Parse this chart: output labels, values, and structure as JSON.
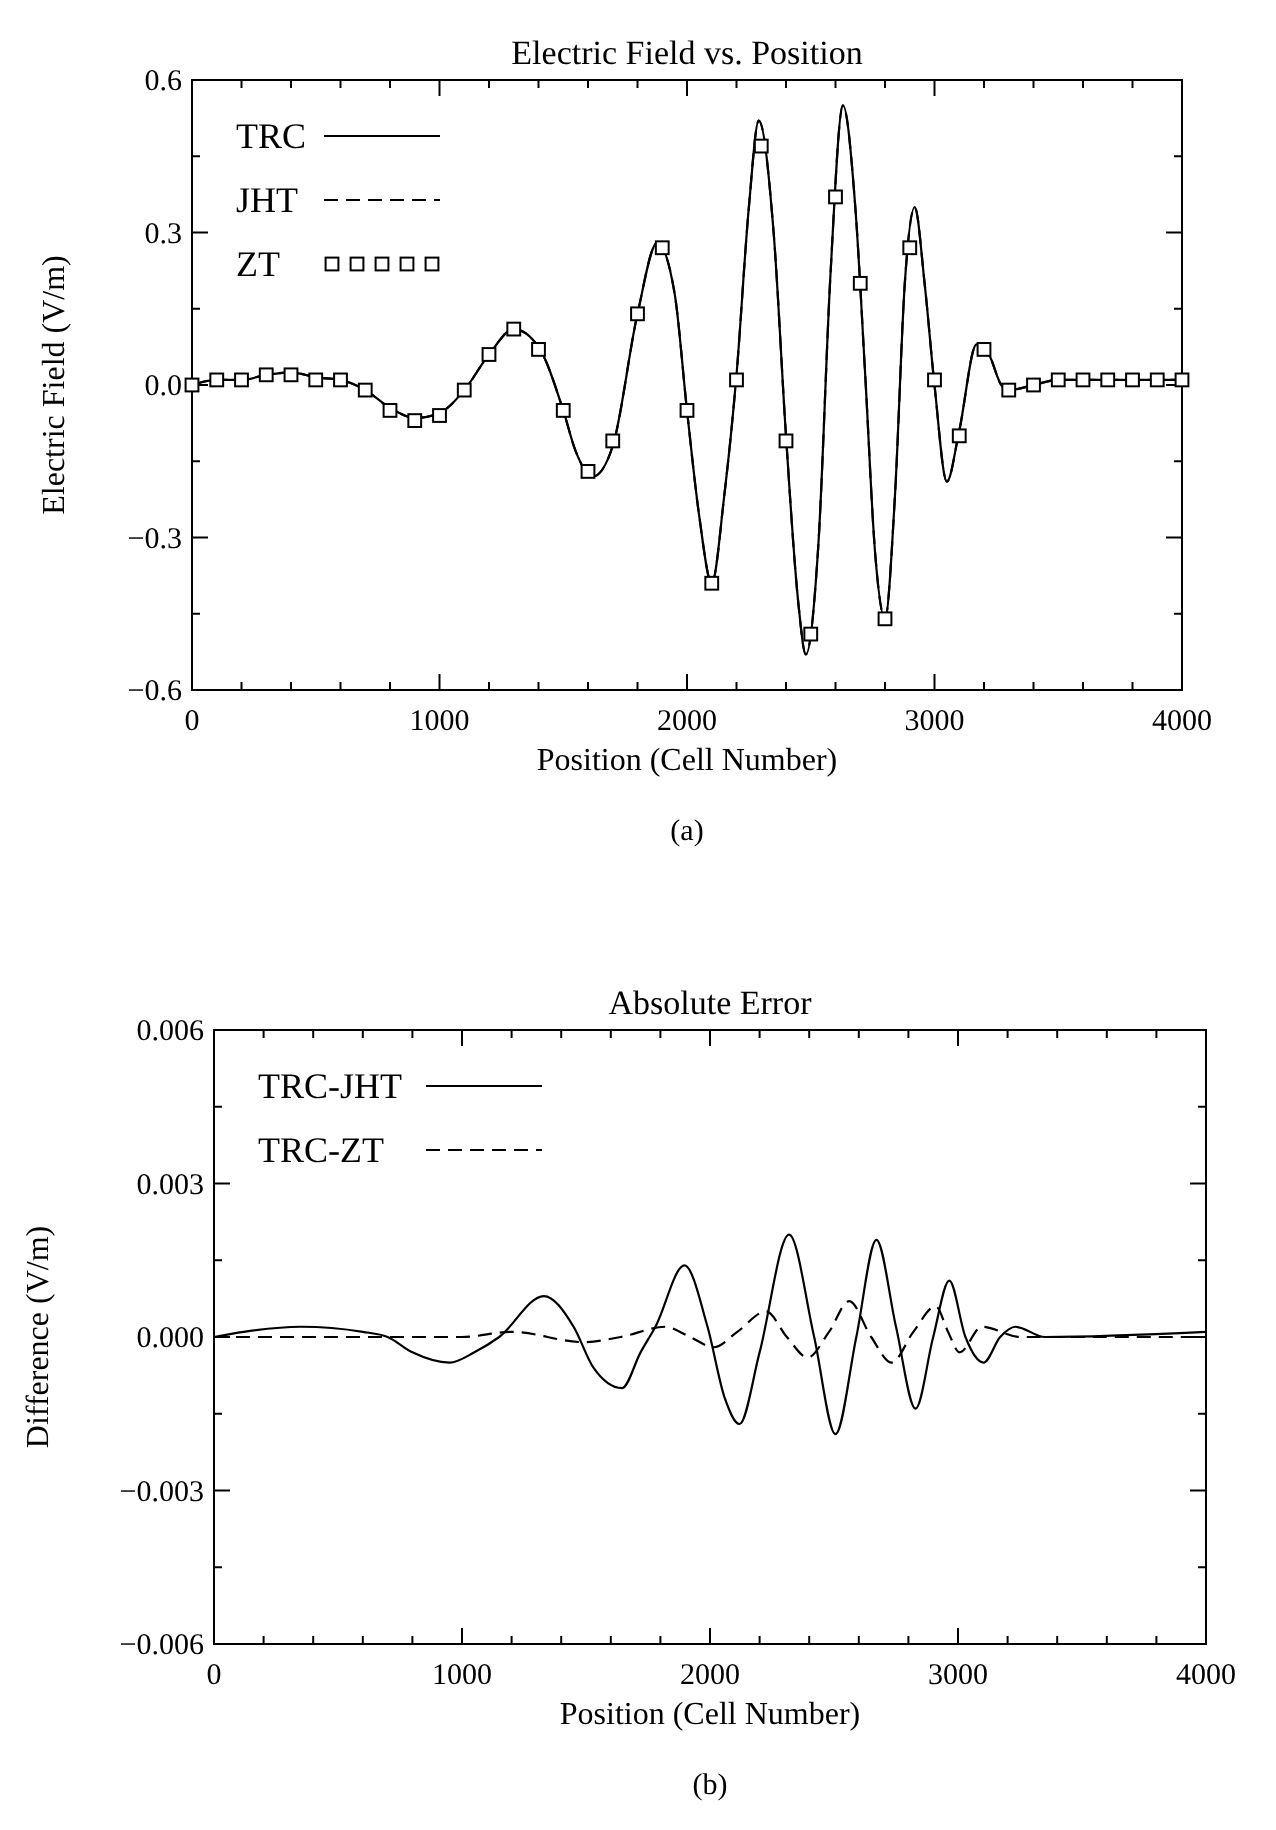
{
  "chart_data": [
    {
      "type": "line",
      "title": "Electric Field vs. Position",
      "xlabel": "Position (Cell Number)",
      "ylabel": "Electric Field (V/m)",
      "annotations": [
        "(a)"
      ],
      "xlim": [
        0,
        4000
      ],
      "ylim": [
        -0.6,
        0.6
      ],
      "xticks": [
        0,
        {
          "value": 200,
          "label": null
        },
        {
          "value": 400,
          "label": null
        },
        {
          "value": 600,
          "label": null
        },
        {
          "value": 800,
          "label": null
        },
        1000,
        {
          "value": 1200,
          "label": null
        },
        {
          "value": 1400,
          "label": null
        },
        {
          "value": 1600,
          "label": null
        },
        {
          "value": 1800,
          "label": null
        },
        2000,
        {
          "value": 2200,
          "label": null
        },
        {
          "value": 2400,
          "label": null
        },
        {
          "value": 2600,
          "label": null
        },
        {
          "value": 2800,
          "label": null
        },
        3000,
        {
          "value": 3200,
          "label": null
        },
        {
          "value": 3400,
          "label": null
        },
        {
          "value": 3600,
          "label": null
        },
        {
          "value": 3800,
          "label": null
        },
        4000
      ],
      "yticks": [
        {
          "value": -0.6,
          "label": "−0.6"
        },
        {
          "value": -0.45,
          "label": null
        },
        {
          "value": -0.3,
          "label": "−0.3"
        },
        {
          "value": -0.15,
          "label": null
        },
        {
          "value": 0,
          "label": "0.0"
        },
        {
          "value": 0.15,
          "label": null
        },
        0.3,
        {
          "value": 0.45,
          "label": null
        },
        0.6
      ],
      "legend": "top left",
      "grid": false,
      "series": [
        {
          "name": "TRC",
          "type": "line",
          "line_style": "solid",
          "color": "#000000",
          "x": [
            0,
            100,
            200,
            300,
            400,
            500,
            600,
            700,
            800,
            900,
            1000,
            1100,
            1200,
            1300,
            1400,
            1500,
            1550,
            1620,
            1700,
            1800,
            1880,
            1950,
            2000,
            2050,
            2100,
            2150,
            2200,
            2250,
            2290,
            2350,
            2400,
            2450,
            2480,
            2530,
            2580,
            2630,
            2680,
            2720,
            2760,
            2800,
            2840,
            2880,
            2920,
            2960,
            3000,
            3050,
            3100,
            3170,
            3220,
            3270,
            3300,
            3400,
            3500,
            4000
          ],
          "values": [
            0,
            0.01,
            0.01,
            0.02,
            0.025,
            0.015,
            0.01,
            -0.01,
            -0.045,
            -0.065,
            -0.055,
            -0.01,
            0.06,
            0.11,
            0.075,
            -0.05,
            -0.13,
            -0.18,
            -0.12,
            0.14,
            0.28,
            0.18,
            -0.05,
            -0.26,
            -0.39,
            -0.22,
            0.02,
            0.35,
            0.52,
            0.3,
            -0.1,
            -0.43,
            -0.53,
            -0.32,
            0.22,
            0.55,
            0.35,
            0.02,
            -0.33,
            -0.46,
            -0.22,
            0.2,
            0.35,
            0.2,
            0,
            -0.19,
            -0.09,
            0.08,
            0.06,
            0,
            -0.01,
            0,
            0.01,
            0.01
          ]
        },
        {
          "name": "JHT",
          "type": "line",
          "line_style": "dashed",
          "color": "#000000",
          "x": [
            0,
            100,
            200,
            300,
            400,
            500,
            600,
            700,
            800,
            900,
            1000,
            1100,
            1200,
            1300,
            1400,
            1500,
            1550,
            1620,
            1700,
            1800,
            1880,
            1950,
            2000,
            2050,
            2100,
            2150,
            2200,
            2250,
            2290,
            2350,
            2400,
            2450,
            2480,
            2530,
            2580,
            2630,
            2680,
            2720,
            2760,
            2800,
            2840,
            2880,
            2920,
            2960,
            3000,
            3050,
            3100,
            3170,
            3220,
            3270,
            3300,
            3400,
            3500,
            4000
          ],
          "values": [
            0,
            0.01,
            0.01,
            0.02,
            0.025,
            0.015,
            0.01,
            -0.01,
            -0.045,
            -0.065,
            -0.055,
            -0.01,
            0.06,
            0.11,
            0.075,
            -0.05,
            -0.13,
            -0.18,
            -0.12,
            0.14,
            0.28,
            0.18,
            -0.05,
            -0.26,
            -0.39,
            -0.22,
            0.02,
            0.35,
            0.52,
            0.3,
            -0.1,
            -0.43,
            -0.53,
            -0.32,
            0.22,
            0.55,
            0.35,
            0.02,
            -0.33,
            -0.46,
            -0.22,
            0.2,
            0.35,
            0.2,
            0,
            -0.19,
            -0.09,
            0.08,
            0.06,
            0,
            -0.01,
            0,
            0.01,
            0.01
          ]
        },
        {
          "name": "ZT",
          "type": "scatter",
          "marker": "square",
          "color": "#000000",
          "x": [
            0,
            100,
            200,
            300,
            400,
            500,
            600,
            700,
            800,
            900,
            1000,
            1100,
            1200,
            1300,
            1400,
            1500,
            1600,
            1700,
            1800,
            1900,
            2000,
            2100,
            2200,
            2300,
            2400,
            2500,
            2600,
            2700,
            2800,
            2900,
            3000,
            3100,
            3200,
            3300,
            3400,
            3500,
            3600,
            3700,
            3800,
            3900,
            4000
          ],
          "values": [
            0,
            0.01,
            0.01,
            0.02,
            0.02,
            0.01,
            0.01,
            -0.01,
            -0.05,
            -0.07,
            -0.06,
            -0.01,
            0.06,
            0.11,
            0.07,
            -0.05,
            -0.17,
            -0.11,
            0.14,
            0.27,
            -0.05,
            -0.39,
            0.01,
            0.47,
            -0.11,
            -0.49,
            0.37,
            0.2,
            -0.46,
            0.27,
            0.01,
            -0.1,
            0.07,
            -0.01,
            0,
            0.01,
            0.01,
            0.01,
            0.01,
            0.01,
            0.01
          ]
        }
      ]
    },
    {
      "type": "line",
      "title": "Absolute Error",
      "xlabel": "Position (Cell Number)",
      "ylabel": "Difference (V/m)",
      "annotations": [
        "(b)"
      ],
      "xlim": [
        0,
        4000
      ],
      "ylim": [
        -0.006,
        0.006
      ],
      "xticks": [
        0,
        {
          "value": 200,
          "label": null
        },
        {
          "value": 400,
          "label": null
        },
        {
          "value": 600,
          "label": null
        },
        {
          "value": 800,
          "label": null
        },
        1000,
        {
          "value": 1200,
          "label": null
        },
        {
          "value": 1400,
          "label": null
        },
        {
          "value": 1600,
          "label": null
        },
        {
          "value": 1800,
          "label": null
        },
        2000,
        {
          "value": 2200,
          "label": null
        },
        {
          "value": 2400,
          "label": null
        },
        {
          "value": 2600,
          "label": null
        },
        {
          "value": 2800,
          "label": null
        },
        3000,
        {
          "value": 3200,
          "label": null
        },
        {
          "value": 3400,
          "label": null
        },
        {
          "value": 3600,
          "label": null
        },
        {
          "value": 3800,
          "label": null
        },
        4000
      ],
      "yticks": [
        {
          "value": -0.006,
          "label": "−0.006"
        },
        {
          "value": -0.0045,
          "label": null
        },
        {
          "value": -0.003,
          "label": "−0.003"
        },
        {
          "value": -0.0015,
          "label": null
        },
        {
          "value": 0,
          "label": "0.000"
        },
        {
          "value": 0.0015,
          "label": null
        },
        {
          "value": 0.003,
          "label": "0.003"
        },
        {
          "value": 0.0045,
          "label": null
        },
        {
          "value": 0.006,
          "label": "0.006"
        }
      ],
      "legend": "top left",
      "grid": false,
      "series": [
        {
          "name": "TRC-JHT",
          "type": "line",
          "line_style": "solid",
          "color": "#000000",
          "x": [
            0,
            120,
            350,
            600,
            700,
            800,
            950,
            1050,
            1150,
            1330,
            1450,
            1530,
            1645,
            1720,
            1780,
            1897,
            1990,
            2060,
            2119,
            2200,
            2319,
            2420,
            2506,
            2590,
            2671,
            2750,
            2829,
            2900,
            2965,
            3030,
            3103,
            3170,
            3232,
            3350,
            4000
          ],
          "values": [
            0,
            0.0001,
            0.0002,
            0.0001,
            0,
            -0.0003,
            -0.0005,
            -0.0003,
            0,
            0.0008,
            0.0002,
            -0.0006,
            -0.001,
            -0.0003,
            0.0002,
            0.0014,
            0.0002,
            -0.0012,
            -0.0017,
            -0.0003,
            0.002,
            0,
            -0.0019,
            0,
            0.0019,
            0.0002,
            -0.0014,
            0,
            0.0011,
            0,
            -0.0005,
            0,
            0.0002,
            0,
            0.0001
          ]
        },
        {
          "name": "TRC-ZT",
          "type": "line",
          "line_style": "dashed",
          "color": "#000000",
          "x": [
            0,
            500,
            1000,
            1200,
            1490,
            1640,
            1819,
            1920,
            2016,
            2110,
            2226,
            2310,
            2394,
            2480,
            2561,
            2650,
            2732,
            2820,
            2910,
            2960,
            3006,
            3097,
            3250,
            4000
          ],
          "values": [
            0,
            0,
            0,
            0.0001,
            -0.0001,
            0,
            0.0002,
            0,
            -0.0002,
            0.0001,
            0.0005,
            0,
            -0.0004,
            0.0001,
            0.0007,
            0,
            -0.0005,
            0.0001,
            0.0006,
            0.0001,
            -0.0003,
            0.0002,
            0,
            0
          ]
        }
      ]
    }
  ]
}
